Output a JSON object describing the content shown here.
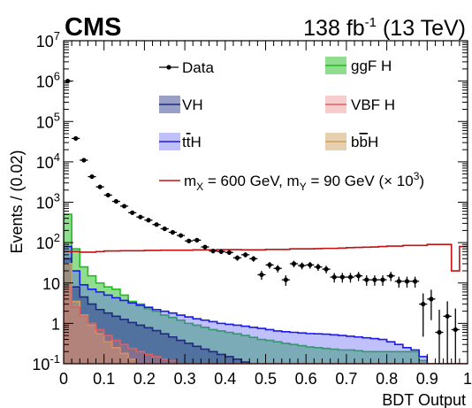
{
  "header": {
    "experiment": "CMS",
    "lumi": "138 fb",
    "lumi_exp": "-1",
    "energy": " (13 TeV)"
  },
  "chart_data": {
    "type": "histogram",
    "xlabel": "BDT Output",
    "ylabel": "Events / (0.02)",
    "xlim": [
      0,
      1
    ],
    "ylim": [
      0.1,
      10000000
    ],
    "yscale": "log",
    "bin_width": 0.02,
    "x_ticks": [
      "0",
      "0.1",
      "0.2",
      "0.3",
      "0.4",
      "0.5",
      "0.6",
      "0.7",
      "0.8",
      "0.9",
      "1"
    ],
    "legend": {
      "placement": "top",
      "entries": [
        {
          "id": "data",
          "label": "Data",
          "color": "#000000"
        },
        {
          "id": "ggf",
          "label": "ggF H",
          "color": "#22bb22"
        },
        {
          "id": "vh",
          "label": "VH",
          "color": "#1f2a80"
        },
        {
          "id": "vbf",
          "label": "VBF H",
          "color": "#e06060"
        },
        {
          "id": "tth",
          "label_parts": [
            "t",
            "t",
            "H"
          ],
          "color": "#1a1aee"
        },
        {
          "id": "bbh",
          "label_parts": [
            "b",
            "b",
            "H"
          ],
          "color": "#d0a060"
        },
        {
          "id": "signal",
          "label_parts": [
            "m",
            "X",
            " = 600 GeV, m",
            "Y",
            " = 90 GeV (× 10",
            "3",
            ")"
          ],
          "color": "#c41010"
        }
      ]
    },
    "series": {
      "data": {
        "x": [
          0.01,
          0.03,
          0.05,
          0.07,
          0.09,
          0.11,
          0.13,
          0.15,
          0.17,
          0.19,
          0.21,
          0.23,
          0.25,
          0.27,
          0.29,
          0.31,
          0.33,
          0.35,
          0.37,
          0.39,
          0.41,
          0.43,
          0.45,
          0.47,
          0.49,
          0.51,
          0.53,
          0.55,
          0.57,
          0.59,
          0.61,
          0.63,
          0.65,
          0.67,
          0.69,
          0.71,
          0.73,
          0.75,
          0.77,
          0.79,
          0.81,
          0.83,
          0.85,
          0.87,
          0.89,
          0.91,
          0.93,
          0.95,
          0.97
        ],
        "y": [
          1000000,
          38000,
          11000,
          4300,
          2400,
          1500,
          1050,
          800,
          550,
          430,
          360,
          280,
          220,
          180,
          150,
          110,
          115,
          78,
          62,
          60,
          57,
          42,
          50,
          40,
          16,
          28,
          23,
          12,
          30,
          27,
          28,
          25,
          22,
          14,
          14,
          14,
          15,
          12,
          12,
          12,
          15,
          11,
          11,
          11,
          3.0,
          4.0,
          0.6,
          1.5,
          0.7
        ]
      },
      "signal": {
        "values": [
          60,
          60,
          58,
          58,
          60,
          62,
          62,
          63,
          63,
          63,
          64,
          64,
          65,
          65,
          65,
          65,
          66,
          66,
          66,
          67,
          67,
          67,
          66,
          66,
          66,
          68,
          68,
          68,
          70,
          70,
          70,
          71,
          72,
          72,
          73,
          75,
          76,
          77,
          78,
          80,
          82,
          82,
          85,
          85,
          85,
          90,
          90,
          90,
          20,
          80
        ]
      },
      "ggf": {
        "values": [
          500,
          70,
          25,
          15,
          10,
          8,
          7,
          5,
          3.5,
          3.0,
          2.3,
          2.0,
          1.6,
          1.4,
          1.2,
          1.0,
          0.9,
          0.8,
          0.7,
          0.65,
          0.6,
          0.55,
          0.5,
          0.45,
          0.4,
          0.38,
          0.35,
          0.32,
          0.3,
          0.28,
          0.26,
          0.25,
          0.24,
          0.23,
          0.22,
          0.22,
          0.21,
          0.2,
          0.2,
          0.2,
          0.2,
          0.2,
          0.2,
          0.2,
          0.12,
          0.1,
          0.1,
          0.1,
          0.1,
          0.1
        ]
      },
      "tth": {
        "values": [
          80,
          20,
          9,
          7,
          6.0,
          5.0,
          4.3,
          3.7,
          3.2,
          2.8,
          2.5,
          2.2,
          2.0,
          1.8,
          1.6,
          1.45,
          1.3,
          1.2,
          1.1,
          1.0,
          0.95,
          0.9,
          0.85,
          0.8,
          0.75,
          0.7,
          0.65,
          0.62,
          0.6,
          0.58,
          0.56,
          0.55,
          0.54,
          0.52,
          0.5,
          0.48,
          0.46,
          0.44,
          0.42,
          0.4,
          0.35,
          0.3,
          0.25,
          0.22,
          0.15,
          0.1,
          0.1,
          0.1,
          0.1,
          0.1
        ]
      },
      "vh": {
        "values": [
          40,
          8,
          4.5,
          3.0,
          2.2,
          1.8,
          1.5,
          1.25,
          1.05,
          0.9,
          0.78,
          0.66,
          0.55,
          0.46,
          0.38,
          0.32,
          0.27,
          0.23,
          0.2,
          0.17,
          0.15,
          0.13,
          0.11,
          0.1,
          0.1,
          0.1,
          0.1,
          0.1,
          0.1,
          0.1,
          0.1,
          0.1,
          0.1,
          0.1,
          0.1,
          0.1,
          0.1,
          0.1,
          0.1,
          0.1,
          0.1,
          0.1,
          0.1,
          0.1,
          0.1,
          0.1,
          0.1,
          0.1,
          0.1,
          0.1
        ]
      },
      "bbh": {
        "values": [
          30,
          3.5,
          1.6,
          0.9,
          0.55,
          0.35,
          0.25,
          0.18,
          0.13,
          0.1,
          0.1,
          0.1,
          0.1,
          0.1,
          0.1,
          0.1,
          0.1,
          0.1,
          0.1,
          0.1,
          0.1,
          0.1,
          0.1,
          0.1,
          0.1,
          0.1,
          0.1,
          0.1,
          0.1,
          0.1,
          0.1,
          0.1,
          0.1,
          0.1,
          0.1,
          0.1,
          0.1,
          0.1,
          0.1,
          0.1,
          0.1,
          0.1,
          0.1,
          0.1,
          0.1,
          0.1,
          0.1,
          0.1,
          0.1,
          0.1
        ]
      },
      "vbf": {
        "values": [
          8,
          2.5,
          1.5,
          1.0,
          0.7,
          0.5,
          0.38,
          0.3,
          0.24,
          0.2,
          0.17,
          0.15,
          0.13,
          0.12,
          0.1,
          0.1,
          0.1,
          0.1,
          0.1,
          0.1,
          0.1,
          0.1,
          0.1,
          0.1,
          0.1,
          0.1,
          0.1,
          0.1,
          0.1,
          0.1,
          0.1,
          0.1,
          0.1,
          0.1,
          0.1,
          0.1,
          0.1,
          0.1,
          0.1,
          0.1,
          0.1,
          0.1,
          0.1,
          0.1,
          0.1,
          0.1,
          0.1,
          0.1,
          0.1,
          0.1
        ]
      }
    }
  }
}
